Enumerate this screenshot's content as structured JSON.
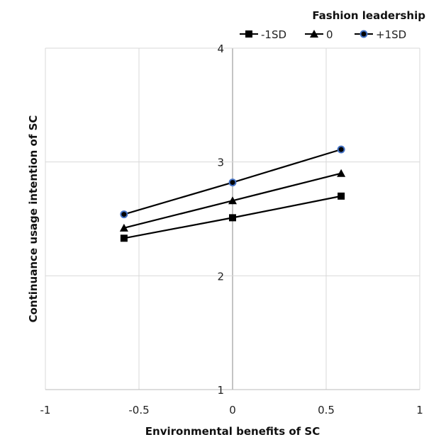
{
  "chart_data": {
    "type": "line",
    "title": "",
    "xlabel": "Environmental benefits of SC",
    "ylabel": "Continuance usage intention of SC",
    "xlim": [
      -1,
      1
    ],
    "ylim": [
      1,
      4
    ],
    "xticks": [
      "-1",
      "-0.5",
      "0",
      "0.5",
      "1"
    ],
    "yticks": [
      "1",
      "2",
      "3",
      "4"
    ],
    "grid": true,
    "legend_title": "Fashion leadership",
    "legend_position": "top-right",
    "x": [
      -0.58,
      0,
      0.58
    ],
    "series": [
      {
        "name": "-1SD",
        "marker": "square",
        "values": [
          2.33,
          2.51,
          2.7
        ]
      },
      {
        "name": "0",
        "marker": "triangle",
        "values": [
          2.42,
          2.66,
          2.9
        ]
      },
      {
        "name": "+1SD",
        "marker": "circle",
        "values": [
          2.54,
          2.82,
          3.11
        ]
      }
    ],
    "colors": {
      "line": "#000000",
      "circle_edge": "#4472c4",
      "grid": "#d9d9d9"
    }
  }
}
